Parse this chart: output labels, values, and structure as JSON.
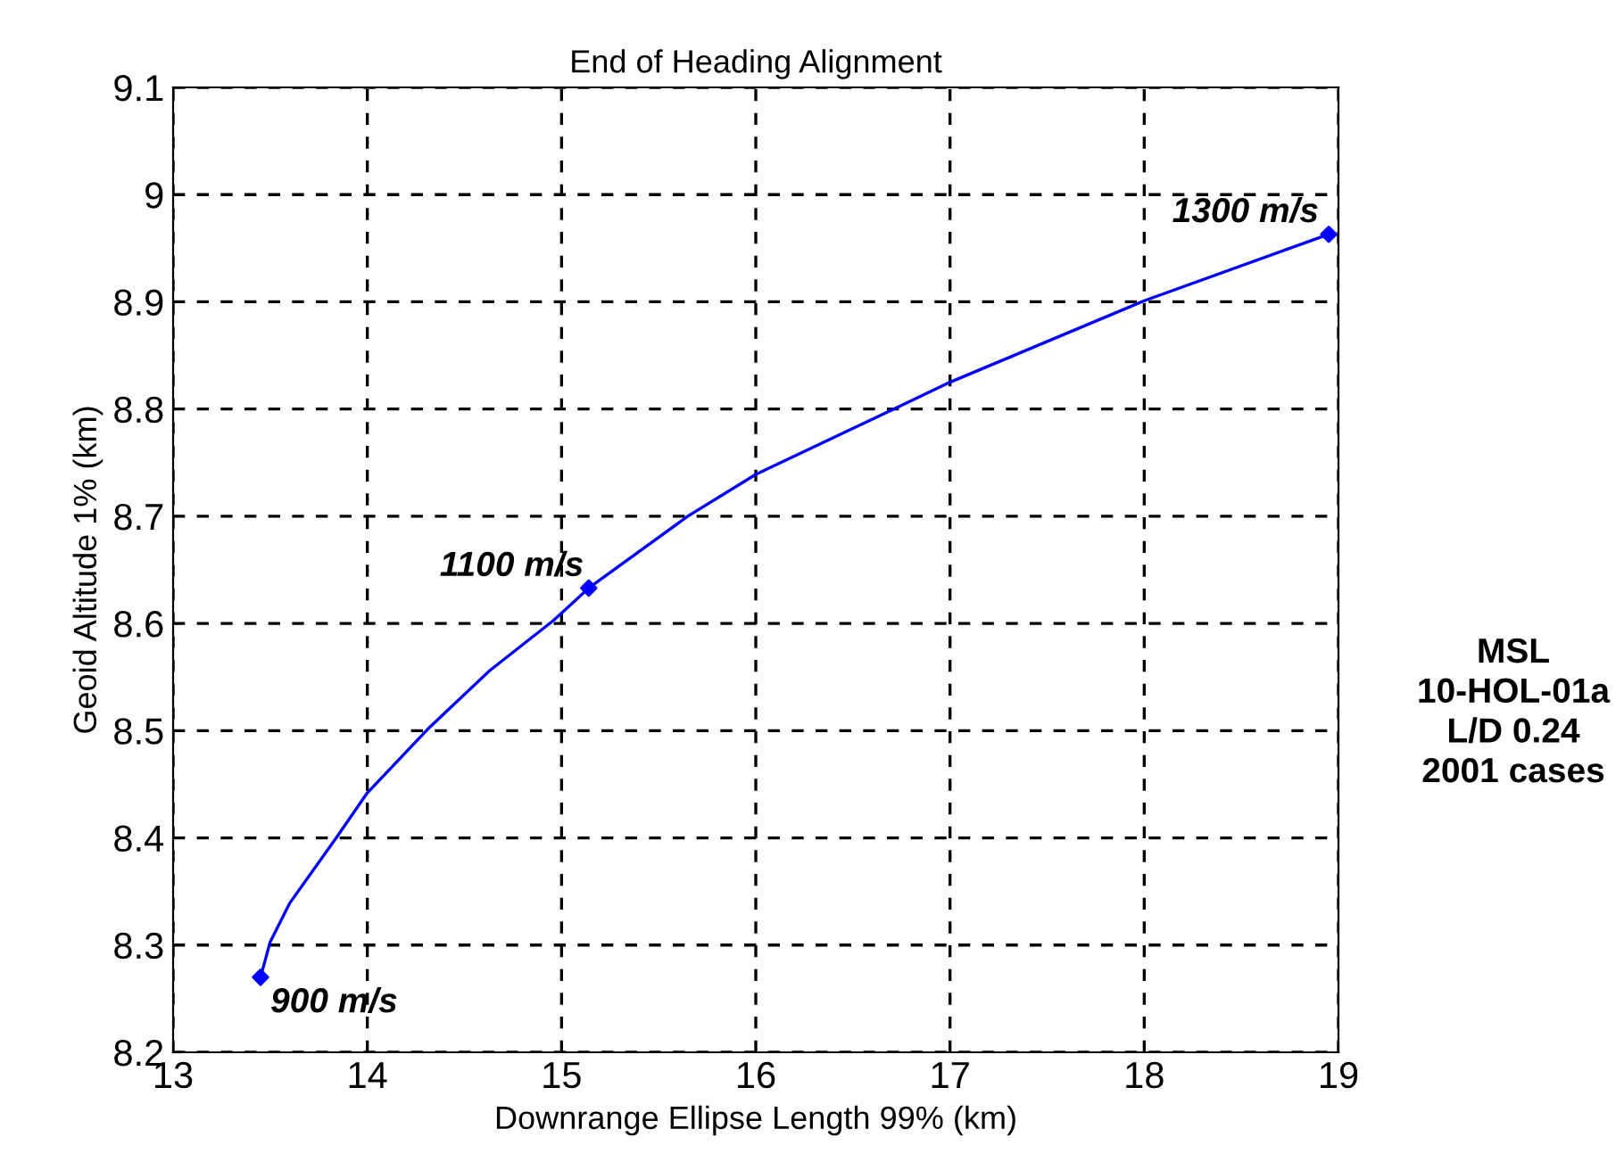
{
  "chart_data": {
    "type": "line",
    "title": "End of Heading Alignment",
    "xlabel": "Downrange Ellipse Length 99% (km)",
    "ylabel": "Geoid Altitude 1% (km)",
    "series": [
      {
        "color": "#0000ff",
        "marker": "none",
        "x": [
          13.45,
          13.5,
          13.6,
          13.84,
          14.0,
          14.32,
          14.63,
          14.96,
          15.14,
          15.65,
          16.0,
          16.71,
          17.0,
          18.0,
          18.95
        ],
        "values": [
          8.27,
          8.303,
          8.339,
          8.4,
          8.442,
          8.503,
          8.556,
          8.603,
          8.633,
          8.7,
          8.739,
          8.8,
          8.825,
          8.901,
          8.963
        ]
      },
      {
        "type": "scatter",
        "color": "#0000ff",
        "marker": "diamond",
        "x": [
          13.45,
          15.14,
          18.95
        ],
        "values": [
          8.27,
          8.633,
          8.963
        ]
      }
    ],
    "annotations": [
      {
        "text": "900 m/s",
        "x": 13.45,
        "y": 8.27
      },
      {
        "text": "1100 m/s",
        "x": 15.14,
        "y": 8.633
      },
      {
        "text": "1300 m/s",
        "x": 18.95,
        "y": 8.963
      },
      "MSL\n10-HOL-01a\nL/D 0.24\n2001 cases"
    ],
    "xlim": [
      13,
      19
    ],
    "xticks": [
      13,
      14,
      15,
      16,
      17,
      18,
      19
    ],
    "ylim": [
      8.2,
      9.1
    ],
    "yticks": [
      8.2,
      8.3,
      8.4,
      8.5,
      8.6,
      8.7,
      8.8,
      8.9,
      9,
      9.1
    ],
    "grid": true,
    "line_style": "solid"
  }
}
